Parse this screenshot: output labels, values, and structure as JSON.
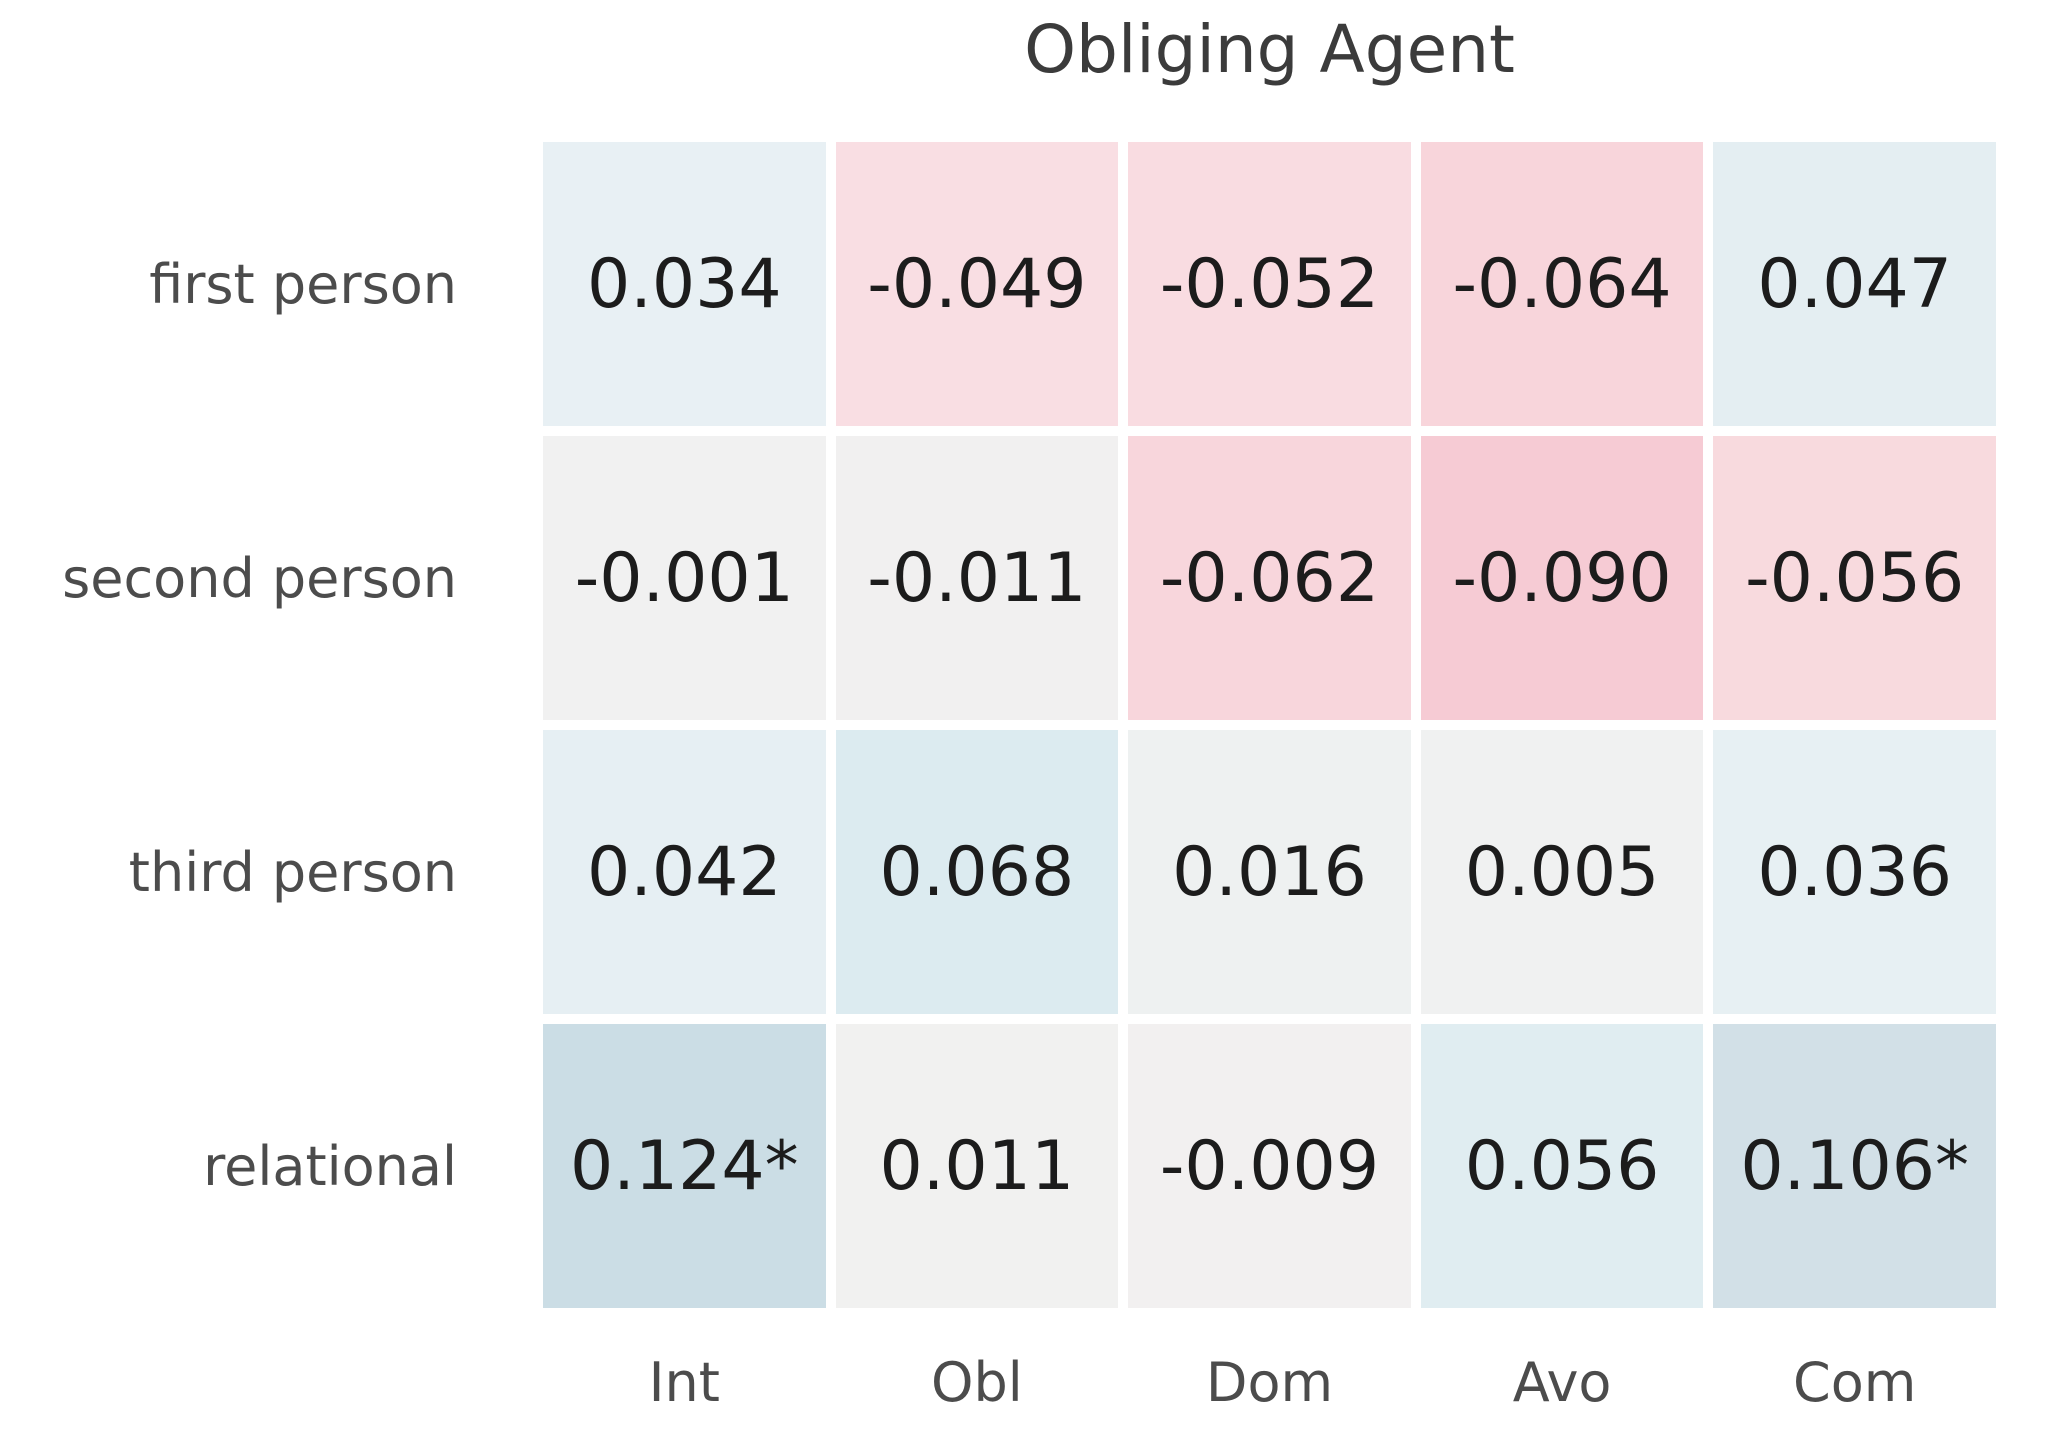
{
  "figure": {
    "title": "Obliging Agent",
    "background": "#ffffff"
  },
  "style": {
    "value_text_color": "#1c1c1c",
    "label_text_color": "#4c4c4c",
    "title_text_color": "#3b3b3b",
    "gridline_color": "#ffffff"
  },
  "chart_data": {
    "type": "heatmap",
    "title": "Obliging Agent",
    "rows": [
      "first person",
      "second person",
      "third person",
      "relational"
    ],
    "columns": [
      "Int",
      "Obl",
      "Dom",
      "Avo",
      "Com"
    ],
    "cell_labels": [
      [
        "0.034",
        "-0.049",
        "-0.052",
        "-0.064",
        "0.047"
      ],
      [
        "-0.001",
        "-0.011",
        "-0.062",
        "-0.090",
        "-0.056"
      ],
      [
        "0.042",
        "0.068",
        "0.016",
        "0.005",
        "0.036"
      ],
      [
        "0.124*",
        "0.011",
        "-0.009",
        "0.056",
        "0.106*"
      ]
    ],
    "values": [
      [
        0.034,
        -0.049,
        -0.052,
        -0.064,
        0.047
      ],
      [
        -0.001,
        -0.011,
        -0.062,
        -0.09,
        -0.056
      ],
      [
        0.042,
        0.068,
        0.016,
        0.005,
        0.036
      ],
      [
        0.124,
        0.011,
        -0.009,
        0.056,
        0.106
      ]
    ],
    "cell_colors": [
      [
        "#e8f0f4",
        "#f9dee3",
        "#f9dce1",
        "#f8d5db",
        "#e4eef2"
      ],
      [
        "#f1f1f1",
        "#f1f0f0",
        "#f8d6dc",
        "#f6cbd4",
        "#f8dade"
      ],
      [
        "#e6eff3",
        "#dcebf0",
        "#eef1f1",
        "#f0f1f1",
        "#e7f0f3"
      ],
      [
        "#cbdde5",
        "#f1f1f0",
        "#f2f0f0",
        "#e0edf1",
        "#d2e0e7"
      ]
    ],
    "significance_marker": "*",
    "legend": false,
    "grid_lines": "white separators between cells",
    "color_scale_note": "diverging: blue = positive, pink = negative, near-white = near zero"
  }
}
